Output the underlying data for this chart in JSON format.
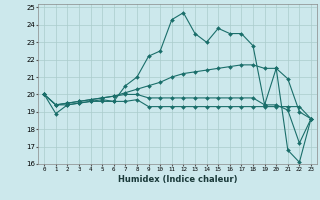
{
  "xlabel": "Humidex (Indice chaleur)",
  "xlim": [
    -0.5,
    23.5
  ],
  "ylim": [
    16,
    25.2
  ],
  "yticks": [
    16,
    17,
    18,
    19,
    20,
    21,
    22,
    23,
    24,
    25
  ],
  "xticks": [
    0,
    1,
    2,
    3,
    4,
    5,
    6,
    7,
    8,
    9,
    10,
    11,
    12,
    13,
    14,
    15,
    16,
    17,
    18,
    19,
    20,
    21,
    22,
    23
  ],
  "bg_color": "#cce8ec",
  "grid_color": "#aacccc",
  "line_color": "#1a6e6a",
  "lines": [
    [
      20.0,
      18.9,
      19.4,
      19.5,
      19.6,
      19.7,
      19.6,
      20.5,
      21.0,
      22.2,
      22.5,
      24.3,
      24.7,
      23.5,
      23.0,
      23.8,
      23.5,
      23.5,
      22.8,
      19.4,
      21.5,
      16.8,
      16.1,
      18.6
    ],
    [
      20.0,
      19.4,
      19.4,
      19.5,
      19.6,
      19.6,
      19.6,
      19.6,
      19.7,
      19.3,
      19.3,
      19.3,
      19.3,
      19.3,
      19.3,
      19.3,
      19.3,
      19.3,
      19.3,
      19.3,
      19.3,
      19.3,
      19.3,
      18.6
    ],
    [
      20.0,
      19.4,
      19.5,
      19.6,
      19.7,
      19.8,
      19.9,
      20.1,
      20.3,
      20.5,
      20.7,
      21.0,
      21.2,
      21.3,
      21.4,
      21.5,
      21.6,
      21.7,
      21.7,
      21.5,
      21.5,
      20.9,
      19.0,
      18.6
    ],
    [
      20.0,
      19.4,
      19.5,
      19.6,
      19.7,
      19.8,
      19.9,
      20.0,
      20.0,
      19.8,
      19.8,
      19.8,
      19.8,
      19.8,
      19.8,
      19.8,
      19.8,
      19.8,
      19.8,
      19.4,
      19.4,
      19.1,
      17.2,
      18.6
    ]
  ]
}
